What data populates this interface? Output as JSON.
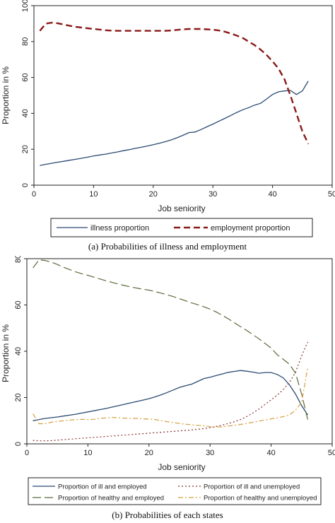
{
  "chart_data": [
    {
      "type": "line",
      "xlabel": "Job seniority",
      "ylabel": "Proportion in %",
      "xlim": [
        0,
        50
      ],
      "ylim": [
        0,
        100
      ],
      "xticks": [
        0,
        10,
        20,
        30,
        40,
        50
      ],
      "yticks": [
        0,
        20,
        40,
        60,
        80,
        100
      ],
      "legend_position": "bottom",
      "caption": "(a)  Probabilities of illness and employment",
      "series": [
        {
          "name": "illness proportion",
          "color": "#2a4a73",
          "style": "solid",
          "x": [
            1,
            2,
            3,
            4,
            5,
            6,
            7,
            8,
            9,
            10,
            11,
            12,
            13,
            14,
            15,
            16,
            17,
            18,
            19,
            20,
            21,
            22,
            23,
            24,
            25,
            26,
            27,
            28,
            29,
            30,
            31,
            32,
            33,
            34,
            35,
            36,
            37,
            38,
            39,
            40,
            41,
            42,
            43,
            44,
            45,
            46
          ],
          "values": [
            11,
            11.6,
            12.2,
            12.8,
            13.3,
            13.9,
            14.4,
            15,
            15.6,
            16.3,
            16.8,
            17.3,
            17.9,
            18.5,
            19.2,
            19.8,
            20.5,
            21.1,
            21.8,
            22.5,
            23.3,
            24.2,
            25.2,
            26.4,
            27.8,
            29.3,
            29.6,
            31,
            32.5,
            34,
            35.6,
            37.2,
            38.8,
            40.5,
            42,
            43.2,
            44.6,
            45.6,
            48,
            50.5,
            52,
            52.5,
            52.8,
            50.5,
            52.5,
            58
          ]
        },
        {
          "name": "employment proportion",
          "color": "#8b1a1a",
          "style": "dash",
          "x": [
            1,
            2,
            3,
            4,
            5,
            6,
            7,
            8,
            9,
            10,
            11,
            12,
            13,
            14,
            15,
            16,
            17,
            18,
            19,
            20,
            21,
            22,
            23,
            24,
            25,
            26,
            27,
            28,
            29,
            30,
            31,
            32,
            33,
            34,
            35,
            36,
            37,
            38,
            39,
            40,
            41,
            42,
            43,
            44,
            45,
            46
          ],
          "values": [
            86,
            90,
            90.5,
            90.2,
            89.5,
            88.8,
            88.2,
            87.8,
            87.4,
            87.0,
            86.7,
            86.3,
            86.1,
            86.0,
            86.0,
            86.0,
            86.0,
            86.0,
            86.0,
            86.0,
            86.0,
            86.0,
            86.2,
            86.5,
            86.8,
            87.0,
            87.0,
            87.0,
            86.8,
            86.6,
            86.2,
            85.5,
            84.5,
            83.3,
            82,
            80,
            78,
            75.5,
            72.5,
            69,
            65,
            59,
            50,
            40,
            30,
            23
          ]
        }
      ]
    },
    {
      "type": "line",
      "xlabel": "Job seniority",
      "ylabel": "Proportion in %",
      "xlim": [
        0,
        50
      ],
      "ylim": [
        0,
        80
      ],
      "xticks": [
        0,
        10,
        20,
        30,
        40,
        50
      ],
      "yticks": [
        0,
        20,
        40,
        60,
        80
      ],
      "legend_position": "bottom",
      "caption": "(b)  Probabilities of each states",
      "series": [
        {
          "name": "Proportion of ill and employed",
          "color": "#2a4a73",
          "style": "solid",
          "x": [
            1,
            2,
            3,
            4,
            5,
            6,
            7,
            8,
            9,
            10,
            11,
            12,
            13,
            14,
            15,
            16,
            17,
            18,
            19,
            20,
            21,
            22,
            23,
            24,
            25,
            26,
            27,
            28,
            29,
            30,
            31,
            32,
            33,
            34,
            35,
            36,
            37,
            38,
            39,
            40,
            41,
            42,
            43,
            44,
            45,
            46
          ],
          "values": [
            10,
            10.5,
            11,
            11.3,
            11.6,
            12,
            12.4,
            12.8,
            13.3,
            13.8,
            14.3,
            14.8,
            15.3,
            15.9,
            16.5,
            17.1,
            17.7,
            18.3,
            18.9,
            19.5,
            20.3,
            21.2,
            22.2,
            23.3,
            24.4,
            25.1,
            25.8,
            27,
            28.2,
            28.8,
            29.5,
            30.2,
            30.9,
            31.3,
            31.7,
            31.4,
            31,
            30.5,
            30.8,
            30.8,
            30,
            28.5,
            25.5,
            21.5,
            16.5,
            12.5
          ]
        },
        {
          "name": "Proportion of ill and unemployed",
          "color": "#8b3030",
          "style": "dot",
          "x": [
            1,
            2,
            3,
            4,
            5,
            6,
            7,
            8,
            9,
            10,
            11,
            12,
            13,
            14,
            15,
            16,
            17,
            18,
            19,
            20,
            21,
            22,
            23,
            24,
            25,
            26,
            27,
            28,
            29,
            30,
            31,
            32,
            33,
            34,
            35,
            36,
            37,
            38,
            39,
            40,
            41,
            42,
            43,
            44,
            45,
            46
          ],
          "values": [
            1.5,
            1.3,
            1.3,
            1.4,
            1.6,
            1.8,
            2.0,
            2.2,
            2.4,
            2.6,
            2.8,
            3.0,
            3.2,
            3.4,
            3.6,
            3.8,
            4.0,
            4.2,
            4.4,
            4.6,
            4.8,
            5.0,
            5.2,
            5.4,
            5.6,
            5.8,
            6.0,
            6.3,
            6.6,
            7.0,
            7.5,
            8.1,
            8.8,
            9.6,
            10.5,
            11.8,
            13.3,
            15,
            17,
            19,
            21,
            23.5,
            26.5,
            31,
            38,
            44
          ]
        },
        {
          "name": "Proportion of healthy and employed",
          "color": "#5a6b3a",
          "style": "longdash",
          "x": [
            1,
            2,
            3,
            4,
            5,
            6,
            7,
            8,
            9,
            10,
            11,
            12,
            13,
            14,
            15,
            16,
            17,
            18,
            19,
            20,
            21,
            22,
            23,
            24,
            25,
            26,
            27,
            28,
            29,
            30,
            31,
            32,
            33,
            34,
            35,
            36,
            37,
            38,
            39,
            40,
            41,
            42,
            43,
            44,
            45,
            46
          ],
          "values": [
            76,
            79.5,
            79.2,
            78.5,
            77.5,
            76.3,
            75.3,
            74.3,
            73.5,
            72.8,
            72,
            71.2,
            70.4,
            69.7,
            69,
            68.4,
            67.8,
            67.3,
            66.8,
            66.4,
            65.8,
            65.1,
            64.4,
            63.6,
            62.7,
            61.8,
            60.9,
            60.1,
            59.2,
            58.2,
            57,
            55.5,
            54,
            52.3,
            50.6,
            49,
            47.2,
            45.4,
            43.4,
            41.4,
            38.5,
            36.5,
            34.4,
            30.5,
            21.5,
            10.5
          ]
        },
        {
          "name": "Proportion of healthy and unemployed",
          "color": "#d4a040",
          "style": "dashdot",
          "x": [
            1,
            2,
            3,
            4,
            5,
            6,
            7,
            8,
            9,
            10,
            11,
            12,
            13,
            14,
            15,
            16,
            17,
            18,
            19,
            20,
            21,
            22,
            23,
            24,
            25,
            26,
            27,
            28,
            29,
            30,
            31,
            32,
            33,
            34,
            35,
            36,
            37,
            38,
            39,
            40,
            41,
            42,
            43,
            44,
            45,
            46
          ],
          "values": [
            13,
            8.7,
            8.7,
            9.3,
            9.7,
            10.0,
            10.3,
            10.5,
            10.6,
            10.5,
            10.6,
            11.0,
            11.2,
            11.4,
            11.3,
            11.1,
            11.0,
            11.0,
            10.8,
            10.7,
            10.5,
            10.0,
            9.6,
            9.2,
            8.8,
            8.5,
            8.2,
            8.0,
            7.8,
            7.4,
            7.2,
            7.4,
            7.7,
            8.0,
            8.4,
            8.8,
            9.3,
            9.8,
            10.3,
            10.8,
            11.2,
            11.8,
            12.5,
            14.5,
            18,
            33
          ]
        }
      ]
    }
  ]
}
